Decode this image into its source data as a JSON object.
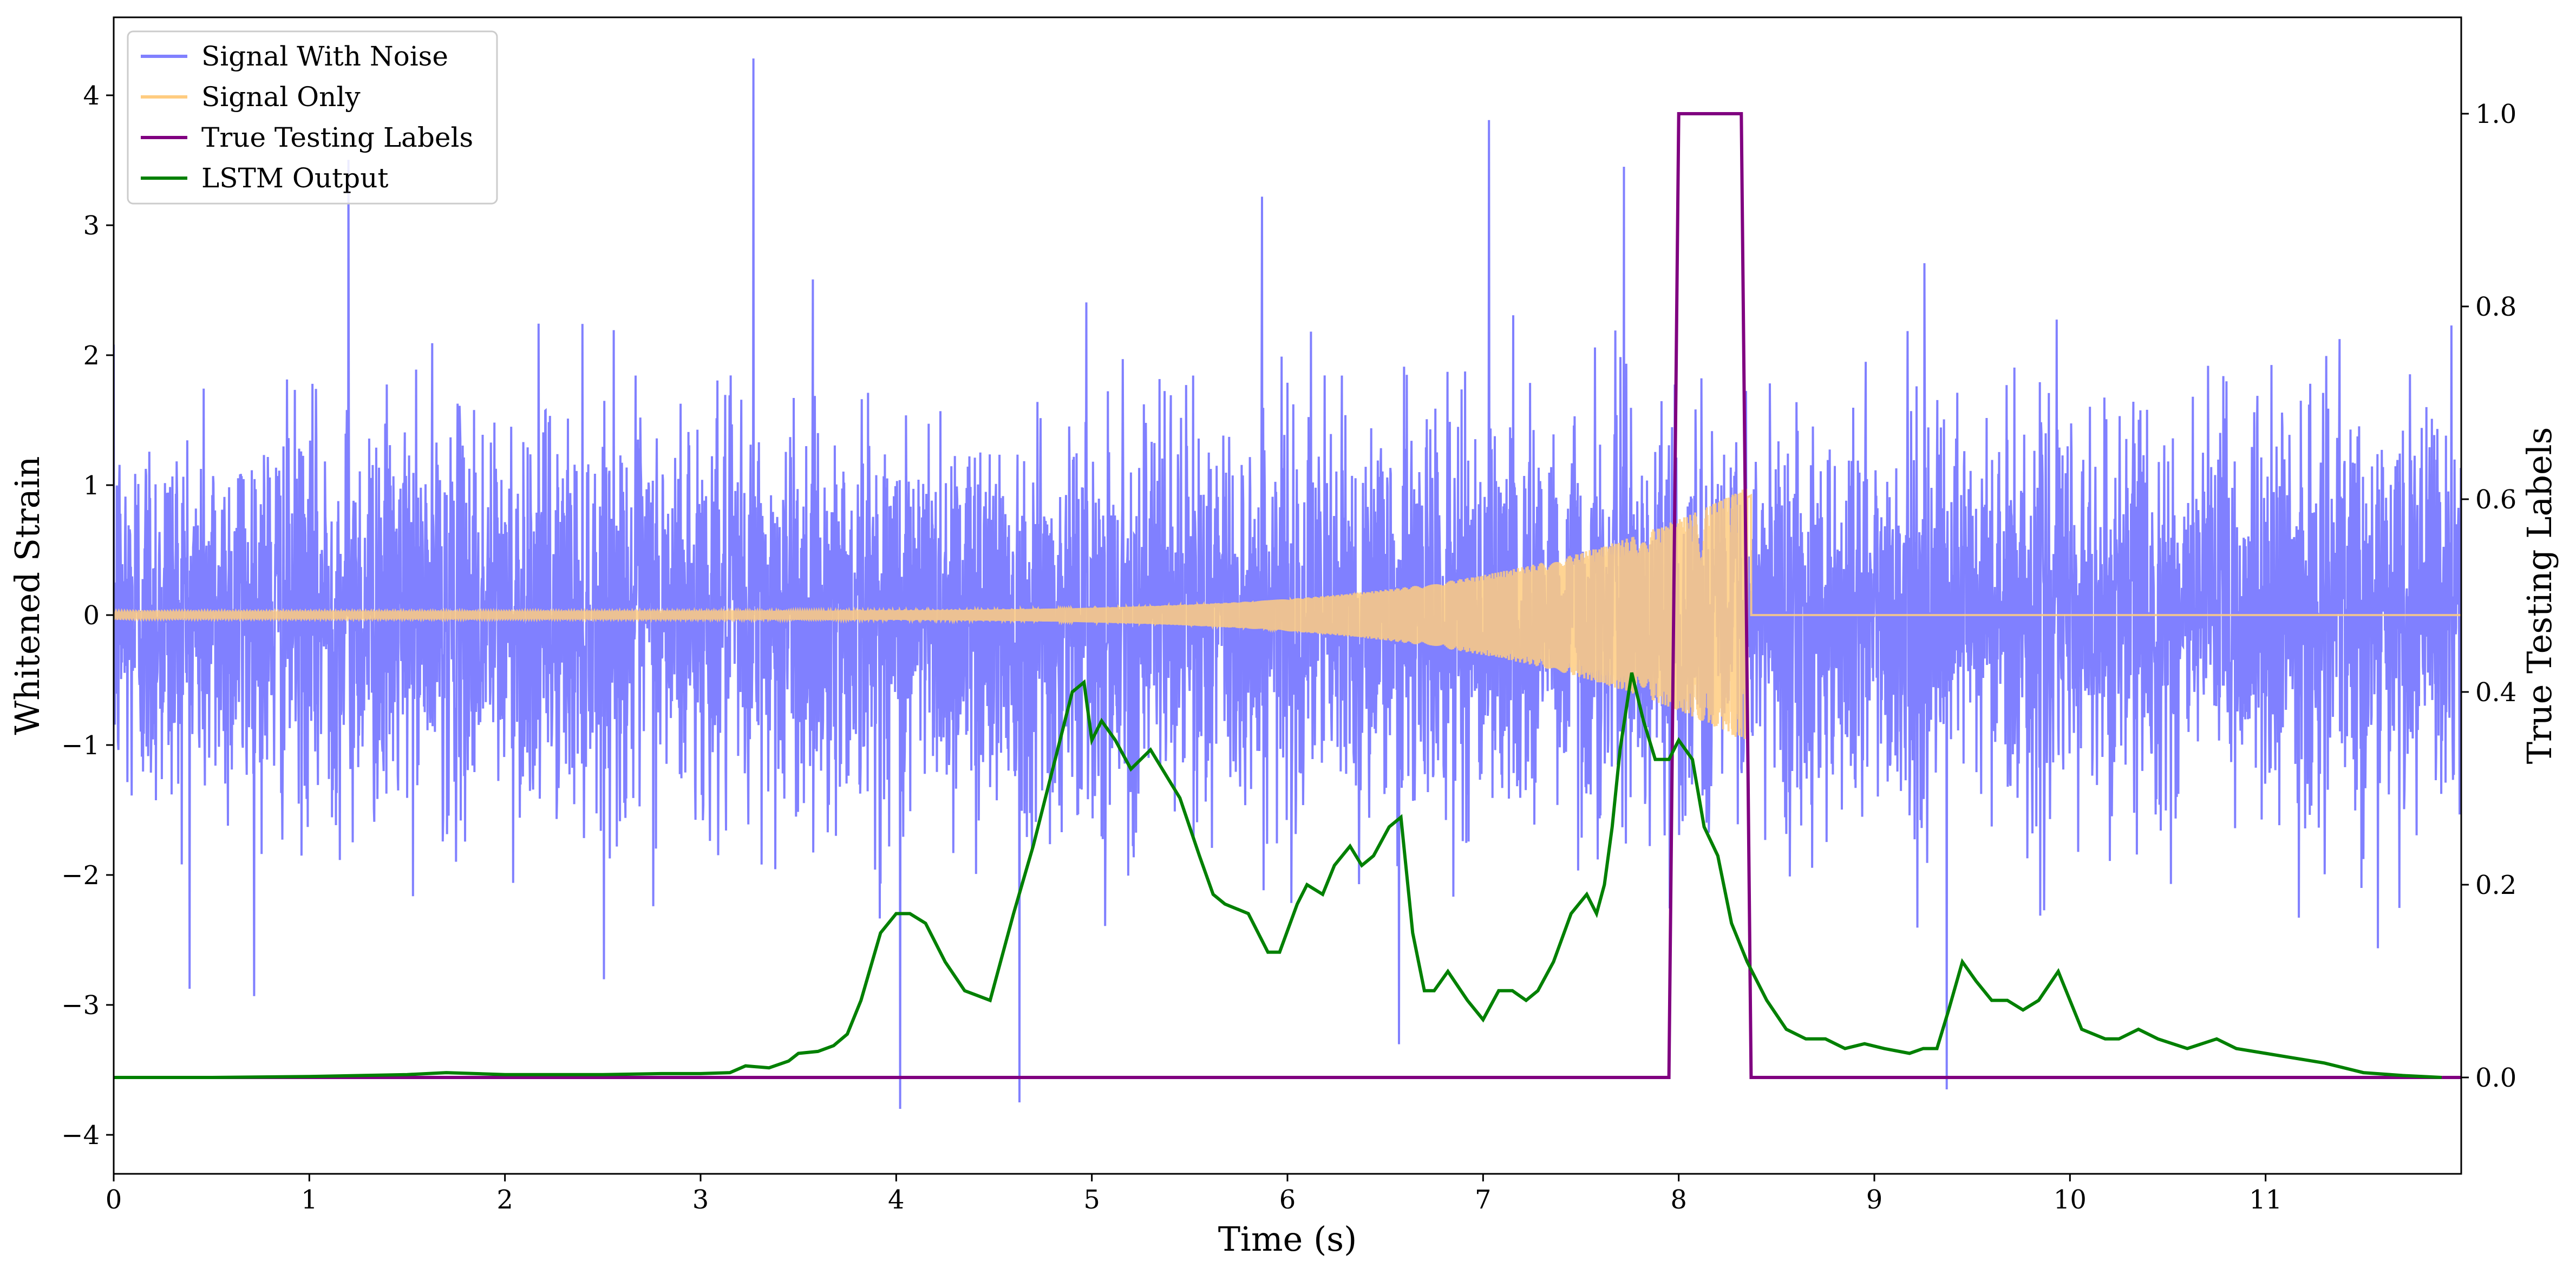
{
  "chart_data": {
    "type": "line",
    "title": "",
    "xlabel": "Time (s)",
    "ylabel": "Whitened Strain",
    "y2label": "True Testing Labels",
    "xlim": [
      0,
      12
    ],
    "ylim": [
      -4.3,
      4.6
    ],
    "y2lim": [
      -0.1,
      1.1
    ],
    "xticks": [
      0,
      1,
      2,
      3,
      4,
      5,
      6,
      7,
      8,
      9,
      10,
      11
    ],
    "xtick_labels": [
      "0",
      "1",
      "2",
      "3",
      "4",
      "5",
      "6",
      "7",
      "8",
      "9",
      "10",
      "11"
    ],
    "yticks": [
      -4,
      -3,
      -2,
      -1,
      0,
      1,
      2,
      3,
      4
    ],
    "ytick_labels": [
      "−4",
      "−3",
      "−2",
      "−1",
      "0",
      "1",
      "2",
      "3",
      "4"
    ],
    "y2ticks": [
      0.0,
      0.2,
      0.4,
      0.6,
      0.8,
      1.0
    ],
    "y2tick_labels": [
      "0.0",
      "0.2",
      "0.4",
      "0.6",
      "0.8",
      "1.0"
    ],
    "grid": false,
    "legend_position": "top-left",
    "series": [
      {
        "name": "Signal With Noise",
        "color": "#8080ff",
        "axis": "left",
        "description_type": "noise",
        "noise_std": 0.75,
        "noise_range": [
          -3.8,
          4.3
        ],
        "notable_spikes": [
          [
            1.2,
            3.5
          ],
          [
            3.27,
            4.27
          ],
          [
            4.02,
            -3.8
          ],
          [
            4.63,
            -3.75
          ],
          [
            5.87,
            3.2
          ],
          [
            6.57,
            -3.2
          ],
          [
            7.03,
            3.7
          ],
          [
            7.72,
            3.45
          ],
          [
            9.37,
            -3.65
          ]
        ]
      },
      {
        "name": "Signal Only",
        "color": "#ffcc80",
        "axis": "left",
        "description_type": "chirp",
        "t_start": 0,
        "t_merger": 8.37,
        "t_end": 12,
        "amp_start": 0.03,
        "amp_merger": 1.0
      },
      {
        "name": "True Testing Labels",
        "color": "#800080",
        "axis": "right",
        "x": [
          0,
          7.95,
          8.0,
          8.32,
          8.37,
          12
        ],
        "y": [
          0,
          0,
          1,
          1,
          0,
          0
        ]
      },
      {
        "name": "LSTM Output",
        "color": "#008000",
        "axis": "right",
        "x": [
          0,
          0.5,
          1.0,
          1.5,
          1.7,
          2.0,
          2.5,
          2.8,
          3.0,
          3.15,
          3.23,
          3.35,
          3.45,
          3.5,
          3.6,
          3.68,
          3.75,
          3.82,
          3.92,
          4.0,
          4.07,
          4.15,
          4.25,
          4.35,
          4.48,
          4.6,
          4.7,
          4.8,
          4.9,
          4.96,
          5.0,
          5.05,
          5.12,
          5.2,
          5.25,
          5.3,
          5.45,
          5.55,
          5.62,
          5.68,
          5.8,
          5.9,
          5.96,
          6.05,
          6.1,
          6.18,
          6.24,
          6.32,
          6.38,
          6.44,
          6.52,
          6.58,
          6.64,
          6.7,
          6.75,
          6.82,
          6.92,
          7.0,
          7.08,
          7.15,
          7.22,
          7.28,
          7.36,
          7.45,
          7.53,
          7.58,
          7.62,
          7.66,
          7.7,
          7.76,
          7.82,
          7.88,
          7.95,
          8.0,
          8.07,
          8.13,
          8.2,
          8.27,
          8.35,
          8.45,
          8.55,
          8.65,
          8.75,
          8.85,
          8.95,
          9.05,
          9.18,
          9.25,
          9.32,
          9.38,
          9.45,
          9.52,
          9.6,
          9.68,
          9.76,
          9.84,
          9.94,
          10.06,
          10.18,
          10.25,
          10.35,
          10.45,
          10.6,
          10.75,
          10.85,
          11.0,
          11.15,
          11.3,
          11.5,
          11.7,
          11.9
        ],
        "y": [
          0,
          0,
          0.001,
          0.003,
          0.005,
          0.003,
          0.003,
          0.004,
          0.004,
          0.005,
          0.012,
          0.01,
          0.017,
          0.025,
          0.027,
          0.033,
          0.045,
          0.08,
          0.15,
          0.17,
          0.17,
          0.16,
          0.12,
          0.09,
          0.08,
          0.17,
          0.24,
          0.32,
          0.4,
          0.41,
          0.35,
          0.37,
          0.35,
          0.32,
          0.33,
          0.34,
          0.29,
          0.23,
          0.19,
          0.18,
          0.17,
          0.13,
          0.13,
          0.18,
          0.2,
          0.19,
          0.22,
          0.24,
          0.22,
          0.23,
          0.26,
          0.27,
          0.15,
          0.09,
          0.09,
          0.11,
          0.08,
          0.06,
          0.09,
          0.09,
          0.08,
          0.09,
          0.12,
          0.17,
          0.19,
          0.17,
          0.2,
          0.26,
          0.34,
          0.42,
          0.37,
          0.33,
          0.33,
          0.35,
          0.33,
          0.26,
          0.23,
          0.16,
          0.12,
          0.08,
          0.05,
          0.04,
          0.04,
          0.03,
          0.035,
          0.03,
          0.025,
          0.03,
          0.03,
          0.07,
          0.12,
          0.1,
          0.08,
          0.08,
          0.07,
          0.08,
          0.11,
          0.05,
          0.04,
          0.04,
          0.05,
          0.04,
          0.03,
          0.04,
          0.03,
          0.025,
          0.02,
          0.015,
          0.005,
          0.002,
          0
        ]
      }
    ]
  }
}
